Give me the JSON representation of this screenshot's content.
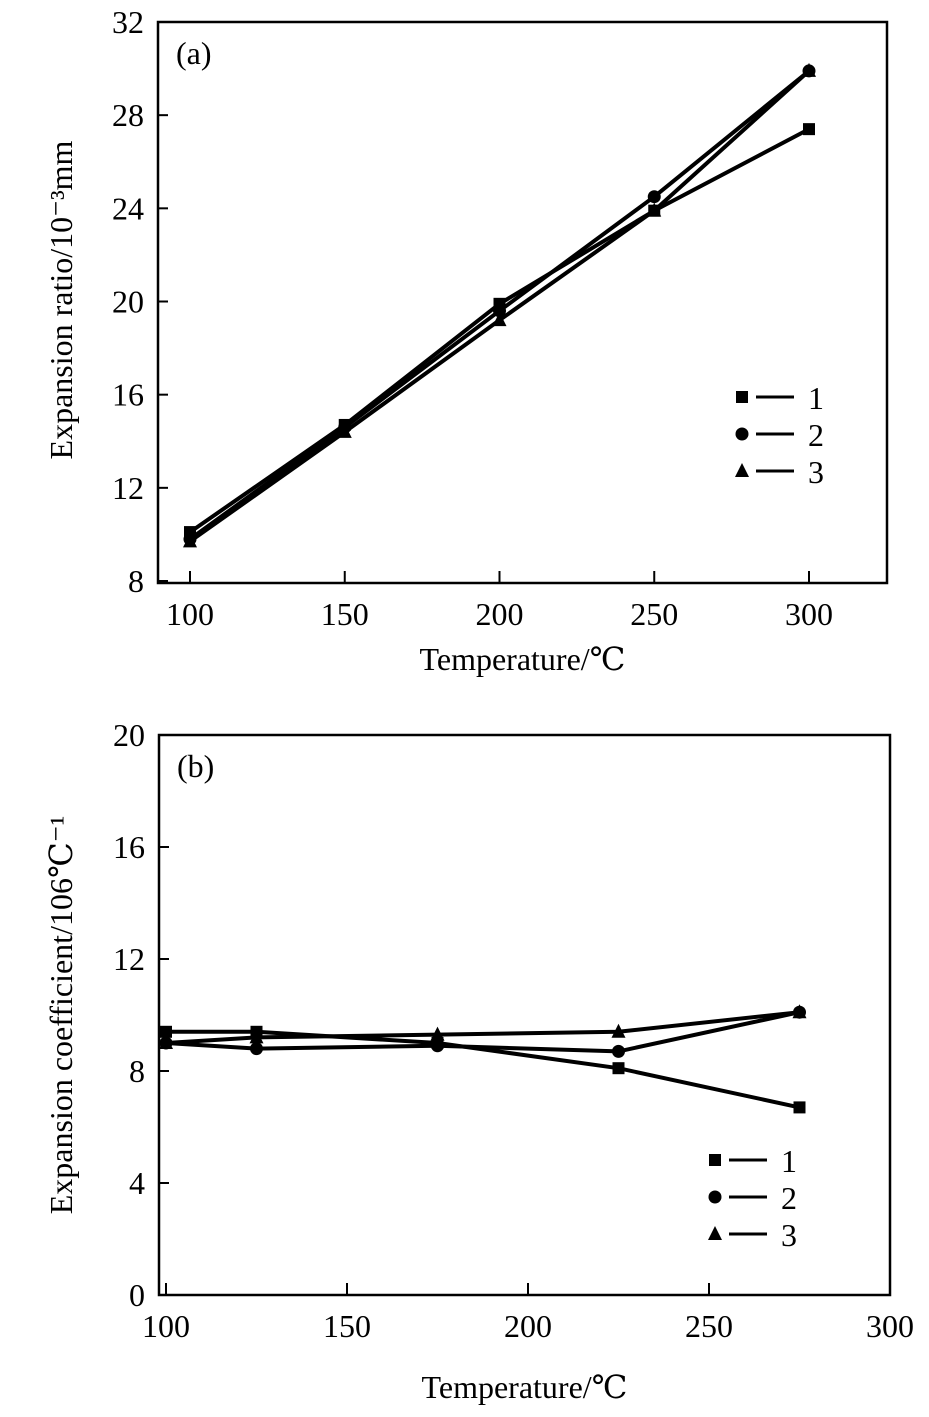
{
  "chart_data": [
    {
      "type": "line",
      "panel_label": "(a)",
      "xlabel": "Temperature/℃",
      "ylabel": "Expansion ratio/10⁻³mm",
      "xlim": [
        100,
        300
      ],
      "ylim": [
        8,
        32
      ],
      "xticks": [
        100,
        150,
        200,
        250,
        300
      ],
      "yticks": [
        8,
        12,
        16,
        20,
        24,
        28,
        32
      ],
      "grid": false,
      "legend_placement": "center-right",
      "x": [
        100,
        150,
        200,
        250,
        300
      ],
      "series": [
        {
          "name": "1",
          "marker": "square",
          "values": [
            10.1,
            14.7,
            19.9,
            23.9,
            27.4
          ]
        },
        {
          "name": "2",
          "marker": "circle",
          "values": [
            9.8,
            14.6,
            19.6,
            24.5,
            29.9
          ]
        },
        {
          "name": "3",
          "marker": "triangle",
          "values": [
            9.7,
            14.4,
            19.2,
            23.9,
            29.9
          ]
        }
      ]
    },
    {
      "type": "line",
      "panel_label": "(b)",
      "xlabel": "Temperature/℃",
      "ylabel": "Expansion coefficient/106℃⁻¹",
      "xlim": [
        100,
        300
      ],
      "ylim": [
        0,
        20
      ],
      "xticks": [
        100,
        150,
        200,
        250,
        300
      ],
      "yticks": [
        0,
        4,
        8,
        12,
        16,
        20
      ],
      "grid": false,
      "legend_placement": "bottom-right",
      "x": [
        100,
        125,
        175,
        225,
        275
      ],
      "series": [
        {
          "name": "1",
          "marker": "square",
          "values": [
            9.4,
            9.4,
            9.0,
            8.1,
            6.7
          ]
        },
        {
          "name": "2",
          "marker": "circle",
          "values": [
            9.0,
            8.8,
            8.9,
            8.7,
            10.1
          ]
        },
        {
          "name": "3",
          "marker": "triangle",
          "values": [
            9.0,
            9.2,
            9.3,
            9.4,
            10.1
          ]
        }
      ]
    }
  ]
}
